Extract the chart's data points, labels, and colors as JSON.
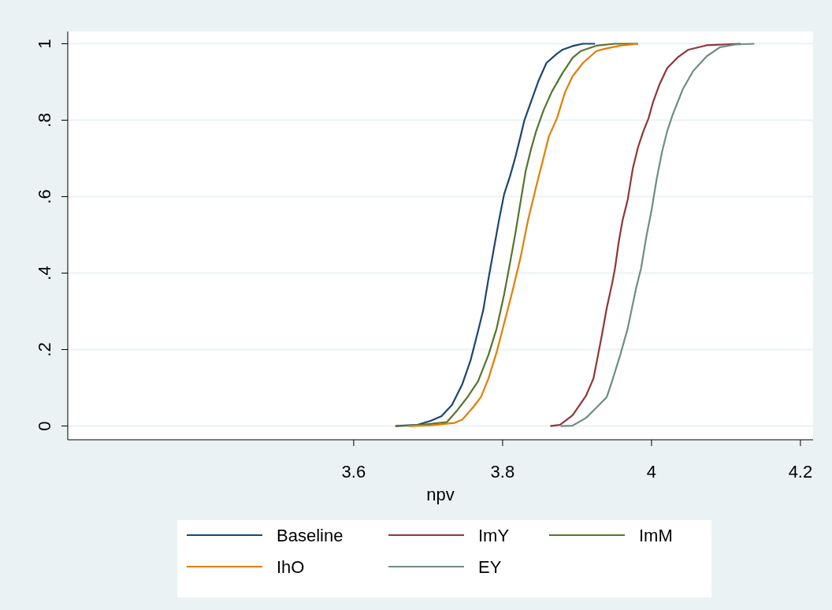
{
  "chart_data": {
    "type": "line",
    "xlabel": "npv",
    "xlim": [
      3.216,
      4.217
    ],
    "xticks": [
      3.6,
      3.8,
      4,
      4.2
    ],
    "ylim": [
      -0.036,
      1.032
    ],
    "yticks": [
      0,
      {
        "value": 0.2,
        "label": ".2"
      },
      {
        "value": 0.4,
        "label": ".4"
      },
      {
        "value": 0.6,
        "label": ".6"
      },
      {
        "value": 0.8,
        "label": ".8"
      },
      1
    ],
    "grid": "y",
    "legend": "bottom",
    "line_style": "solid",
    "marker": "none",
    "series": [
      {
        "name": "Baseline",
        "color": "#1a476f",
        "x": [
          3.656,
          3.686,
          3.704,
          3.718,
          3.732,
          3.746,
          3.757,
          3.767,
          3.774,
          3.781,
          3.788,
          3.795,
          3.802,
          3.81,
          3.817,
          3.824,
          3.829,
          3.838,
          3.848,
          3.859,
          3.873,
          3.88,
          3.894,
          3.908,
          3.924
        ],
        "values": [
          0,
          0.003,
          0.014,
          0.026,
          0.055,
          0.11,
          0.172,
          0.248,
          0.303,
          0.385,
          0.461,
          0.537,
          0.606,
          0.654,
          0.702,
          0.757,
          0.798,
          0.847,
          0.902,
          0.95,
          0.974,
          0.984,
          0.994,
          1,
          1
        ]
      },
      {
        "name": "ImY",
        "color": "#90353b",
        "x": [
          3.864,
          3.877,
          3.894,
          3.912,
          3.922,
          3.933,
          3.94,
          3.947,
          3.951,
          3.956,
          3.961,
          3.968,
          3.975,
          3.982,
          3.989,
          3.996,
          4.002,
          4.011,
          4.021,
          4.035,
          4.049,
          4.074,
          4.12
        ],
        "values": [
          0,
          0.003,
          0.028,
          0.079,
          0.124,
          0.234,
          0.31,
          0.372,
          0.413,
          0.482,
          0.537,
          0.592,
          0.675,
          0.73,
          0.771,
          0.805,
          0.847,
          0.895,
          0.936,
          0.964,
          0.984,
          0.996,
          1
        ]
      },
      {
        "name": "ImM",
        "color": "#55752f",
        "x": [
          3.656,
          3.686,
          3.725,
          3.739,
          3.753,
          3.767,
          3.781,
          3.792,
          3.802,
          3.81,
          3.817,
          3.824,
          3.831,
          3.838,
          3.845,
          3.855,
          3.866,
          3.88,
          3.894,
          3.905,
          3.926,
          3.951,
          3.982
        ],
        "values": [
          0,
          0.002,
          0.01,
          0.041,
          0.076,
          0.117,
          0.186,
          0.255,
          0.344,
          0.427,
          0.502,
          0.585,
          0.667,
          0.723,
          0.771,
          0.826,
          0.874,
          0.922,
          0.963,
          0.981,
          0.995,
          1,
          1
        ]
      },
      {
        "name": "IhO",
        "color": "#e37e00",
        "x": [
          3.674,
          3.704,
          3.735,
          3.746,
          3.76,
          3.771,
          3.781,
          3.792,
          3.802,
          3.813,
          3.824,
          3.834,
          3.845,
          3.855,
          3.862,
          3.873,
          3.884,
          3.894,
          3.908,
          3.926,
          3.94,
          3.958,
          3.982
        ],
        "values": [
          0,
          0.002,
          0.008,
          0.017,
          0.048,
          0.076,
          0.124,
          0.193,
          0.268,
          0.351,
          0.44,
          0.537,
          0.626,
          0.702,
          0.757,
          0.805,
          0.874,
          0.915,
          0.95,
          0.981,
          0.988,
          0.995,
          1
        ]
      },
      {
        "name": "EY",
        "color": "#6e8e84",
        "x": [
          3.878,
          3.894,
          3.912,
          3.926,
          3.94,
          3.947,
          3.958,
          3.968,
          3.979,
          3.986,
          3.993,
          4.0,
          4.007,
          4.014,
          4.021,
          4.028,
          4.042,
          4.056,
          4.074,
          4.092,
          4.113,
          4.138
        ],
        "values": [
          0,
          0.001,
          0.021,
          0.048,
          0.076,
          0.117,
          0.186,
          0.255,
          0.358,
          0.413,
          0.495,
          0.564,
          0.647,
          0.716,
          0.771,
          0.812,
          0.881,
          0.929,
          0.967,
          0.991,
          0.998,
          1
        ]
      }
    ]
  }
}
